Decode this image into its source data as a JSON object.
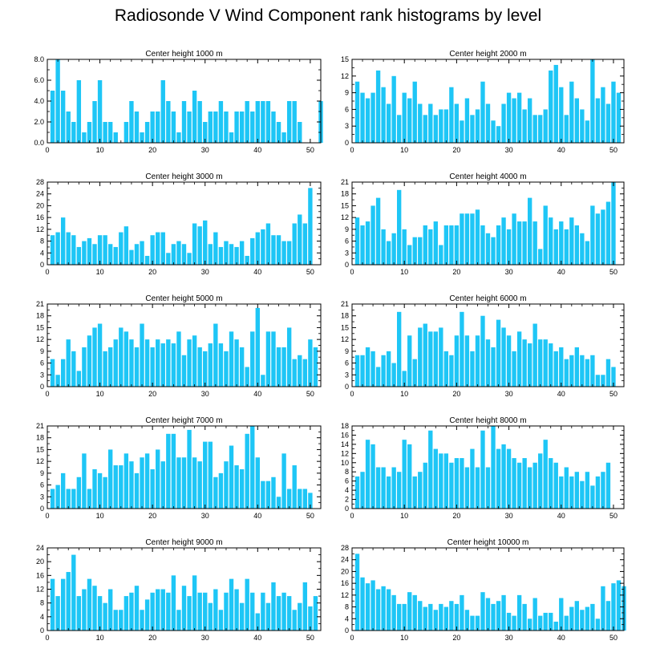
{
  "title": "Radiosonde V Wind Component rank histograms by level",
  "colors": {
    "bar": "#1ec6f6",
    "axis": "#000000",
    "background": "#ffffff"
  },
  "chart_data": [
    {
      "type": "bar",
      "title": "Center height 1000 m",
      "xlim": [
        0,
        52
      ],
      "xticks": [
        0,
        10,
        20,
        30,
        40,
        50
      ],
      "ylim": [
        0,
        8
      ],
      "yticks": [
        "0.0",
        "2.0",
        "4.0",
        "6.0",
        "8.0"
      ],
      "values": [
        5,
        8,
        5,
        3,
        2,
        6,
        1,
        2,
        4,
        6,
        2,
        2,
        1,
        0,
        2,
        4,
        3,
        1,
        2,
        3,
        3,
        6,
        4,
        3,
        1,
        4,
        3,
        5,
        4,
        2,
        3,
        3,
        4,
        3,
        1,
        3,
        3,
        4,
        3,
        4,
        4,
        4,
        3,
        2,
        1,
        4,
        4,
        2,
        0,
        0,
        0,
        4
      ]
    },
    {
      "type": "bar",
      "title": "Center height 2000 m",
      "xlim": [
        0,
        52
      ],
      "xticks": [
        0,
        10,
        20,
        30,
        40,
        50
      ],
      "ylim": [
        0,
        15
      ],
      "yticks": [
        "0",
        "3",
        "6",
        "9",
        "12",
        "15"
      ],
      "values": [
        11,
        9,
        8,
        9,
        13,
        10,
        7,
        12,
        5,
        9,
        8,
        11,
        7,
        5,
        7,
        5,
        6,
        6,
        10,
        7,
        4,
        8,
        5,
        6,
        11,
        7,
        4,
        3,
        7,
        9,
        8,
        9,
        6,
        8,
        5,
        5,
        6,
        13,
        14,
        10,
        5,
        11,
        8,
        6,
        4,
        15,
        8,
        10,
        7,
        11,
        9
      ]
    },
    {
      "type": "bar",
      "title": "Center height 3000 m",
      "xlim": [
        0,
        52
      ],
      "xticks": [
        0,
        10,
        20,
        30,
        40,
        50
      ],
      "ylim": [
        0,
        28
      ],
      "yticks": [
        "0",
        "4",
        "8",
        "12",
        "16",
        "20",
        "24",
        "28"
      ],
      "values": [
        10,
        11,
        16,
        11,
        10,
        6,
        8,
        9,
        7,
        10,
        10,
        7,
        6,
        11,
        13,
        5,
        7,
        8,
        3,
        10,
        11,
        11,
        4,
        7,
        8,
        7,
        4,
        14,
        13,
        15,
        7,
        11,
        6,
        8,
        7,
        6,
        8,
        3,
        9,
        11,
        12,
        14,
        10,
        10,
        8,
        8,
        14,
        17,
        14,
        26
      ]
    },
    {
      "type": "bar",
      "title": "Center height 4000 m",
      "xlim": [
        0,
        52
      ],
      "xticks": [
        0,
        10,
        20,
        30,
        40,
        50
      ],
      "ylim": [
        0,
        21
      ],
      "yticks": [
        "0",
        "3",
        "6",
        "9",
        "12",
        "15",
        "18",
        "21"
      ],
      "values": [
        12,
        10,
        11,
        15,
        17,
        9,
        6,
        8,
        19,
        9,
        5,
        7,
        7,
        10,
        9,
        11,
        5,
        10,
        10,
        10,
        13,
        13,
        13,
        14,
        10,
        8,
        7,
        10,
        12,
        9,
        13,
        11,
        11,
        17,
        11,
        4,
        15,
        12,
        9,
        11,
        9,
        12,
        10,
        8,
        6,
        15,
        13,
        14,
        16,
        21
      ]
    },
    {
      "type": "bar",
      "title": "Center height 5000 m",
      "xlim": [
        0,
        52
      ],
      "xticks": [
        0,
        10,
        20,
        30,
        40,
        50
      ],
      "ylim": [
        0,
        21
      ],
      "yticks": [
        "0",
        "3",
        "6",
        "9",
        "12",
        "15",
        "18",
        "21"
      ],
      "values": [
        7,
        3,
        7,
        12,
        9,
        4,
        10,
        13,
        15,
        16,
        9,
        10,
        12,
        15,
        14,
        12,
        10,
        16,
        12,
        10,
        12,
        11,
        12,
        11,
        14,
        8,
        12,
        13,
        10,
        9,
        11,
        16,
        11,
        9,
        14,
        12,
        10,
        5,
        14,
        20,
        3,
        14,
        14,
        10,
        10,
        15,
        7,
        8,
        7,
        12,
        10
      ]
    },
    {
      "type": "bar",
      "title": "Center height 6000 m",
      "xlim": [
        0,
        52
      ],
      "xticks": [
        0,
        10,
        20,
        30,
        40,
        50
      ],
      "ylim": [
        0,
        21
      ],
      "yticks": [
        "0",
        "3",
        "6",
        "9",
        "12",
        "15",
        "18",
        "21"
      ],
      "values": [
        8,
        8,
        10,
        9,
        5,
        8,
        9,
        6,
        19,
        4,
        13,
        7,
        15,
        16,
        14,
        14,
        15,
        9,
        8,
        13,
        19,
        13,
        9,
        13,
        18,
        12,
        10,
        17,
        15,
        13,
        9,
        14,
        12,
        11,
        16,
        12,
        12,
        11,
        9,
        10,
        7,
        8,
        10,
        8,
        7,
        8,
        3,
        3,
        7,
        5
      ]
    },
    {
      "type": "bar",
      "title": "Center height 7000 m",
      "xlim": [
        0,
        52
      ],
      "xticks": [
        0,
        10,
        20,
        30,
        40,
        50
      ],
      "ylim": [
        0,
        21
      ],
      "yticks": [
        "0",
        "3",
        "6",
        "9",
        "12",
        "15",
        "18",
        "21"
      ],
      "values": [
        5,
        6,
        9,
        5,
        5,
        8,
        14,
        5,
        10,
        9,
        8,
        15,
        11,
        11,
        14,
        12,
        9,
        13,
        14,
        10,
        15,
        12,
        19,
        19,
        13,
        13,
        20,
        13,
        12,
        17,
        17,
        8,
        9,
        12,
        16,
        11,
        10,
        19,
        21,
        13,
        7,
        7,
        8,
        3,
        14,
        5,
        11,
        5,
        5,
        4
      ]
    },
    {
      "type": "bar",
      "title": "Center height 8000 m",
      "xlim": [
        0,
        52
      ],
      "xticks": [
        0,
        10,
        20,
        30,
        40,
        50
      ],
      "ylim": [
        0,
        18
      ],
      "yticks": [
        "0",
        "2",
        "4",
        "6",
        "8",
        "10",
        "12",
        "14",
        "16",
        "18"
      ],
      "values": [
        7,
        8,
        15,
        14,
        9,
        9,
        7,
        9,
        8,
        15,
        14,
        7,
        8,
        10,
        17,
        13,
        12,
        12,
        10,
        11,
        11,
        9,
        13,
        9,
        17,
        9,
        18,
        13,
        14,
        13,
        11,
        10,
        11,
        9,
        10,
        12,
        15,
        11,
        10,
        7,
        9,
        7,
        8,
        6,
        8,
        5,
        7,
        8,
        10
      ]
    },
    {
      "type": "bar",
      "title": "Center height 9000 m",
      "xlim": [
        0,
        52
      ],
      "xticks": [
        0,
        10,
        20,
        30,
        40,
        50
      ],
      "ylim": [
        0,
        24
      ],
      "yticks": [
        "0",
        "4",
        "8",
        "12",
        "16",
        "20",
        "24"
      ],
      "values": [
        15,
        10,
        15,
        17,
        22,
        10,
        12,
        15,
        13,
        10,
        8,
        12,
        6,
        6,
        10,
        11,
        13,
        6,
        9,
        11,
        12,
        12,
        11,
        16,
        6,
        13,
        10,
        16,
        11,
        11,
        8,
        12,
        6,
        11,
        15,
        12,
        8,
        15,
        11,
        5,
        11,
        8,
        14,
        10,
        11,
        10,
        6,
        8,
        14,
        7,
        10
      ]
    },
    {
      "type": "bar",
      "title": "Center height 10000 m",
      "xlim": [
        0,
        52
      ],
      "xticks": [
        0,
        10,
        20,
        30,
        40,
        50
      ],
      "ylim": [
        0,
        28
      ],
      "yticks": [
        "0",
        "4",
        "8",
        "12",
        "16",
        "20",
        "24",
        "28"
      ],
      "values": [
        26,
        18,
        16,
        17,
        14,
        15,
        14,
        12,
        9,
        9,
        13,
        12,
        10,
        8,
        9,
        7,
        9,
        8,
        10,
        9,
        12,
        7,
        5,
        5,
        13,
        11,
        9,
        10,
        12,
        6,
        5,
        12,
        9,
        4,
        11,
        5,
        6,
        6,
        3,
        11,
        5,
        8,
        10,
        7,
        8,
        9,
        4,
        15,
        10,
        16,
        17,
        15
      ]
    }
  ]
}
